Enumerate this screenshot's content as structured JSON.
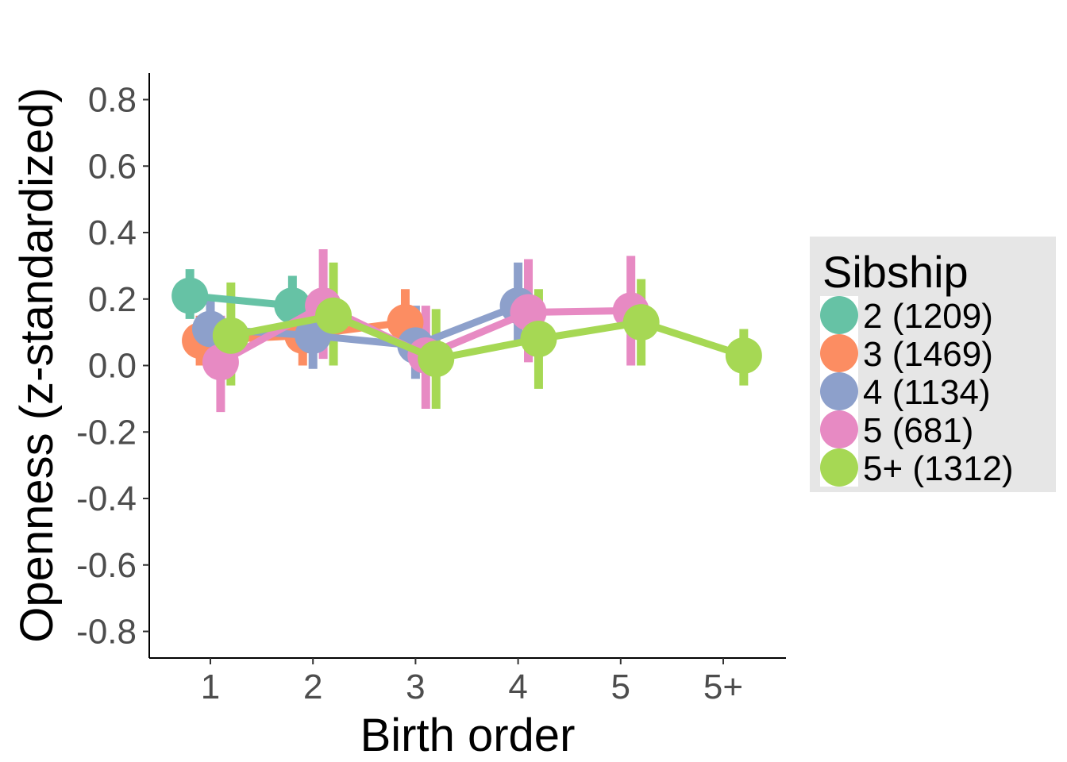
{
  "chart_data": {
    "type": "line",
    "title": "",
    "xlabel": "Birth order",
    "ylabel": "Openness (z-standardized)",
    "categories": [
      "1",
      "2",
      "3",
      "4",
      "5",
      "5+"
    ],
    "y_ticks": [
      "-0.8",
      "-0.6",
      "-0.4",
      "-0.2",
      "0.0",
      "0.2",
      "0.4",
      "0.6",
      "0.8"
    ],
    "ylim": [
      -0.88,
      0.88
    ],
    "grid": false,
    "legend": {
      "title": "Sibship",
      "position": "right",
      "entries": [
        "2 (1209)",
        "3 (1469)",
        "4 (1134)",
        "5 (681)",
        "5+ (1312)"
      ]
    },
    "series": [
      {
        "name": "2 (1209)",
        "color": "#66c2a5",
        "dodge": -0.2,
        "points": [
          {
            "x": "1",
            "y": 0.21,
            "lo": 0.14,
            "hi": 0.29
          },
          {
            "x": "2",
            "y": 0.18,
            "lo": 0.09,
            "hi": 0.27
          }
        ]
      },
      {
        "name": "3 (1469)",
        "color": "#fc8d62",
        "dodge": -0.1,
        "points": [
          {
            "x": "1",
            "y": 0.075,
            "lo": 0.0,
            "hi": 0.15
          },
          {
            "x": "2",
            "y": 0.09,
            "lo": 0.0,
            "hi": 0.18
          },
          {
            "x": "3",
            "y": 0.13,
            "lo": 0.04,
            "hi": 0.23
          }
        ]
      },
      {
        "name": "4 (1134)",
        "color": "#8da0cb",
        "dodge": 0.0,
        "points": [
          {
            "x": "1",
            "y": 0.11,
            "lo": 0.01,
            "hi": 0.2
          },
          {
            "x": "2",
            "y": 0.09,
            "lo": -0.01,
            "hi": 0.19
          },
          {
            "x": "3",
            "y": 0.06,
            "lo": -0.04,
            "hi": 0.18
          },
          {
            "x": "4",
            "y": 0.18,
            "lo": 0.06,
            "hi": 0.31
          }
        ]
      },
      {
        "name": "5 (681)",
        "color": "#e78ac3",
        "dodge": 0.1,
        "points": [
          {
            "x": "1",
            "y": 0.01,
            "lo": -0.14,
            "hi": 0.15
          },
          {
            "x": "2",
            "y": 0.18,
            "lo": 0.02,
            "hi": 0.35
          },
          {
            "x": "3",
            "y": 0.03,
            "lo": -0.13,
            "hi": 0.18
          },
          {
            "x": "4",
            "y": 0.16,
            "lo": 0.01,
            "hi": 0.32
          },
          {
            "x": "5",
            "y": 0.165,
            "lo": 0.0,
            "hi": 0.33
          }
        ]
      },
      {
        "name": "5+ (1312)",
        "color": "#a6d854",
        "dodge": 0.2,
        "points": [
          {
            "x": "1",
            "y": 0.09,
            "lo": -0.06,
            "hi": 0.25
          },
          {
            "x": "2",
            "y": 0.15,
            "lo": 0.0,
            "hi": 0.31
          },
          {
            "x": "3",
            "y": 0.02,
            "lo": -0.13,
            "hi": 0.17
          },
          {
            "x": "4",
            "y": 0.08,
            "lo": -0.07,
            "hi": 0.23
          },
          {
            "x": "5",
            "y": 0.13,
            "lo": 0.0,
            "hi": 0.26
          },
          {
            "x": "5+",
            "y": 0.03,
            "lo": -0.06,
            "hi": 0.11
          }
        ]
      }
    ]
  }
}
